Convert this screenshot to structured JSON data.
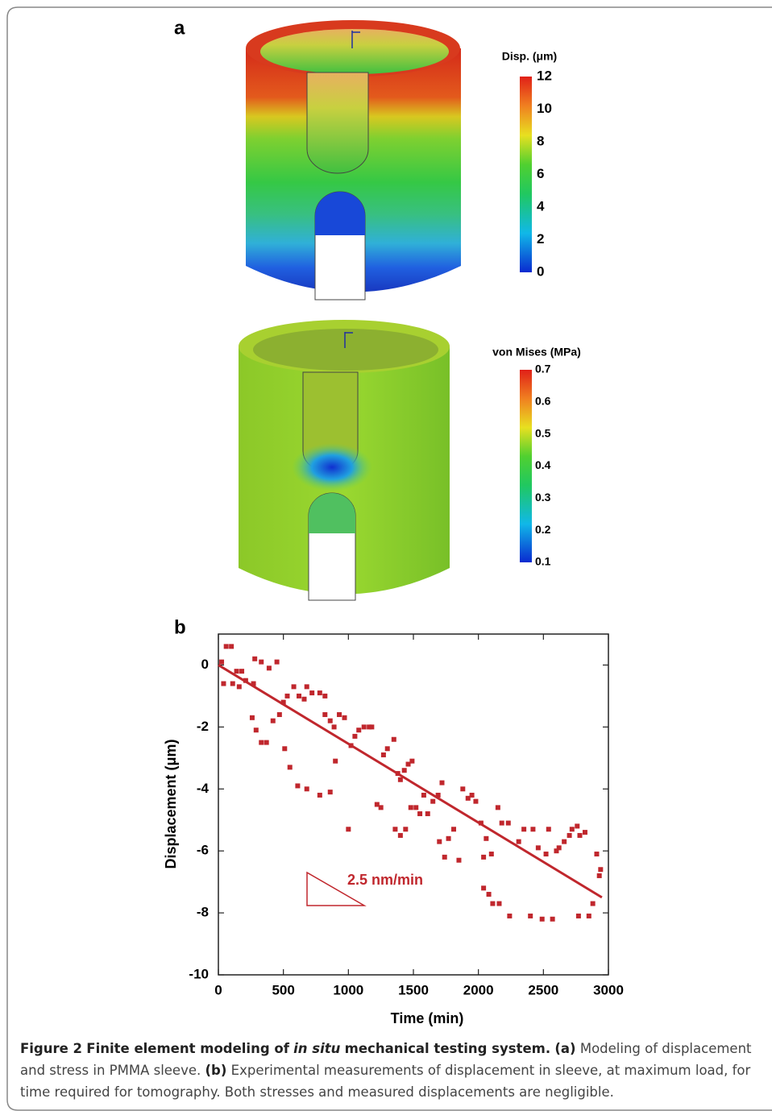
{
  "figure_a": {
    "label": "a",
    "colorbars": [
      {
        "title": "Disp. (μm)",
        "lim": [
          0,
          12
        ],
        "ticks": [
          0,
          2,
          4,
          6,
          8,
          10,
          12
        ]
      },
      {
        "title": "von Mises (MPa)",
        "lim": [
          0.1,
          0.7
        ],
        "ticks": [
          0.1,
          0.2,
          0.3,
          0.4,
          0.5,
          0.6,
          0.7
        ]
      }
    ]
  },
  "chart_data": {
    "type": "scatter",
    "label": "b",
    "x_label": "Time (min)",
    "y_label": "Displacement (μm)",
    "x": [
      25,
      60,
      100,
      40,
      110,
      140,
      180,
      210,
      160,
      270,
      260,
      290,
      330,
      370,
      280,
      330,
      390,
      450,
      420,
      470,
      500,
      530,
      580,
      620,
      660,
      680,
      720,
      780,
      820,
      510,
      550,
      610,
      680,
      780,
      860,
      900,
      860,
      820,
      890,
      930,
      970,
      1020,
      1000,
      1050,
      1080,
      1120,
      1160,
      1180,
      1220,
      1250,
      1270,
      1300,
      1350,
      1380,
      1400,
      1430,
      1460,
      1490,
      1360,
      1400,
      1440,
      1480,
      1520,
      1550,
      1580,
      1610,
      1650,
      1690,
      1720,
      1700,
      1740,
      1770,
      1810,
      1850,
      1880,
      1920,
      1950,
      1980,
      2020,
      2040,
      2060,
      2100,
      2150,
      2180,
      2040,
      2080,
      2110,
      2160,
      2240,
      2310,
      2350,
      2230,
      2400,
      2420,
      2460,
      2490,
      2520,
      2540,
      2570,
      2600,
      2620,
      2660,
      2700,
      2720,
      2760,
      2780,
      2820,
      2770,
      2850,
      2880,
      2910,
      2930,
      2940
    ],
    "values": [
      0.1,
      0.6,
      0.6,
      -0.6,
      -0.6,
      -0.2,
      -0.2,
      -0.5,
      -0.7,
      -0.6,
      -1.7,
      -2.1,
      -2.5,
      -2.5,
      0.2,
      0.1,
      -0.1,
      0.1,
      -1.8,
      -1.6,
      -1.2,
      -1.0,
      -0.7,
      -1.0,
      -1.1,
      -0.7,
      -0.9,
      -0.9,
      -1.0,
      -2.7,
      -3.3,
      -3.9,
      -4.0,
      -4.2,
      -4.1,
      -3.1,
      -1.8,
      -1.6,
      -2.0,
      -1.6,
      -1.7,
      -2.6,
      -5.3,
      -2.3,
      -2.1,
      -2.0,
      -2.0,
      -2.0,
      -4.5,
      -4.6,
      -2.9,
      -2.7,
      -2.4,
      -3.5,
      -3.7,
      -3.4,
      -3.2,
      -3.1,
      -5.3,
      -5.5,
      -5.3,
      -4.6,
      -4.6,
      -4.8,
      -4.2,
      -4.8,
      -4.4,
      -4.2,
      -3.8,
      -5.7,
      -6.2,
      -5.6,
      -5.3,
      -6.3,
      -4.0,
      -4.3,
      -4.2,
      -4.4,
      -5.1,
      -6.2,
      -5.6,
      -6.1,
      -4.6,
      -5.1,
      -7.2,
      -7.4,
      -7.7,
      -7.7,
      -8.1,
      -5.7,
      -5.3,
      -5.1,
      -8.1,
      -5.3,
      -5.9,
      -8.2,
      -6.1,
      -5.3,
      -8.2,
      -6.0,
      -5.9,
      -5.7,
      -5.5,
      -5.3,
      -5.2,
      -5.5,
      -5.4,
      -8.1,
      -8.1,
      -7.7,
      -6.1,
      -6.8,
      -6.6
    ],
    "color": "#c0272d",
    "fit_line": {
      "x": [
        0,
        2950
      ],
      "values": [
        0,
        -7.5
      ]
    },
    "annotation": "2.5 nm/min",
    "xlim": [
      0,
      3000
    ],
    "xticks": [
      0,
      500,
      1000,
      1500,
      2000,
      2500,
      3000
    ],
    "ylim": [
      -10,
      1
    ],
    "yticks": [
      -10,
      -8,
      -6,
      -4,
      -2,
      0
    ]
  },
  "caption": {
    "figure": "Figure 2",
    "title_before": "Finite element modeling of",
    "title_italic": "in situ",
    "title_after": "mechanical testing system.",
    "a_label": "(a)",
    "a_text": "Modeling of displacement and stress in PMMA sleeve.",
    "b_label": "(b)",
    "b_text": "Experimental measurements of displacement in sleeve, at maximum load, for time required for tomography. Both stresses and measured displacements are negligible."
  }
}
